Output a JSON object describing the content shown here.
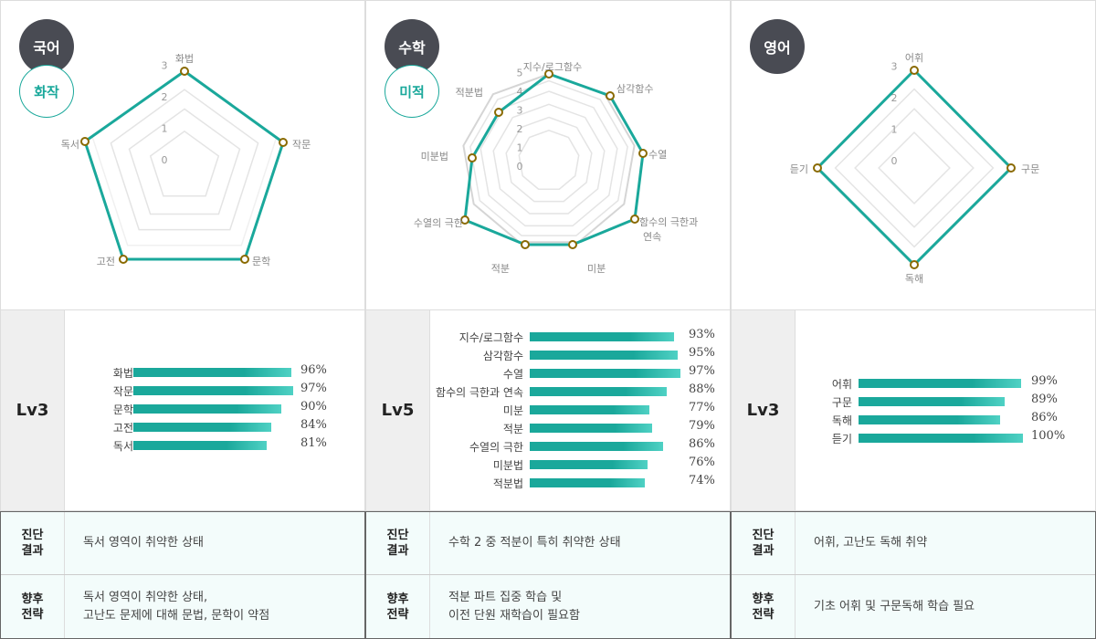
{
  "accent_color": "#1aa89b",
  "columns": [
    {
      "subject": "국어",
      "sub_badge": "화작",
      "level": "Lv3",
      "radar": {
        "ticks": [
          "0",
          "1",
          "2",
          "3"
        ],
        "axes": [
          "화법",
          "작문",
          "문학",
          "고전",
          "독서"
        ]
      },
      "bars": [
        {
          "label": "화법",
          "value": "96%",
          "pct": 96
        },
        {
          "label": "작문",
          "value": "97%",
          "pct": 97
        },
        {
          "label": "문학",
          "value": "90%",
          "pct": 90
        },
        {
          "label": "고전",
          "value": "84%",
          "pct": 84
        },
        {
          "label": "독서",
          "value": "81%",
          "pct": 81
        }
      ],
      "diagnosis": {
        "head": "진단\n결과",
        "text": "독서 영역이 취약한 상태"
      },
      "strategy": {
        "head": "향후\n전략",
        "text": "독서 영역이 취약한 상태,\n고난도 문제에 대해 문법, 문학이 약점"
      }
    },
    {
      "subject": "수학",
      "sub_badge": "미적",
      "level": "Lv5",
      "radar": {
        "ticks": [
          "0",
          "1",
          "2",
          "3",
          "4",
          "5"
        ],
        "axes": [
          "지수/로그함수",
          "삼각함수",
          "수열",
          "함수의 극한과\n연속",
          "미분",
          "적분",
          "수열의 극한",
          "미분법",
          "적분법"
        ]
      },
      "bars": [
        {
          "label": "지수/로그함수",
          "value": "93%",
          "pct": 93
        },
        {
          "label": "삼각함수",
          "value": "95%",
          "pct": 95
        },
        {
          "label": "수열",
          "value": "97%",
          "pct": 97
        },
        {
          "label": "함수의 극한과 연속",
          "value": "88%",
          "pct": 88
        },
        {
          "label": "미분",
          "value": "77%",
          "pct": 77
        },
        {
          "label": "적분",
          "value": "79%",
          "pct": 79
        },
        {
          "label": "수열의 극한",
          "value": "86%",
          "pct": 86
        },
        {
          "label": "미분법",
          "value": "76%",
          "pct": 76
        },
        {
          "label": "적분법",
          "value": "74%",
          "pct": 74
        }
      ],
      "diagnosis": {
        "head": "진단\n결과",
        "text": "수학 2 중 적분이 특히 취약한 상태"
      },
      "strategy": {
        "head": "향후\n전략",
        "text": "적분 파트 집중 학습 및\n이전 단원 재학습이 필요함"
      }
    },
    {
      "subject": "영어",
      "sub_badge": "",
      "level": "Lv3",
      "radar": {
        "ticks": [
          "0",
          "1",
          "2",
          "3"
        ],
        "axes": [
          "어휘",
          "구문",
          "독해",
          "듣기"
        ]
      },
      "bars": [
        {
          "label": "어휘",
          "value": "99%",
          "pct": 99
        },
        {
          "label": "구문",
          "value": "89%",
          "pct": 89
        },
        {
          "label": "독해",
          "value": "86%",
          "pct": 86
        },
        {
          "label": "듣기",
          "value": "100%",
          "pct": 100
        }
      ],
      "diagnosis": {
        "head": "진단\n결과",
        "text": "어휘, 고난도 독해 취약"
      },
      "strategy": {
        "head": "향후\n전략",
        "text": "기초 어휘 및 구문독해 학습 필요"
      }
    }
  ]
}
